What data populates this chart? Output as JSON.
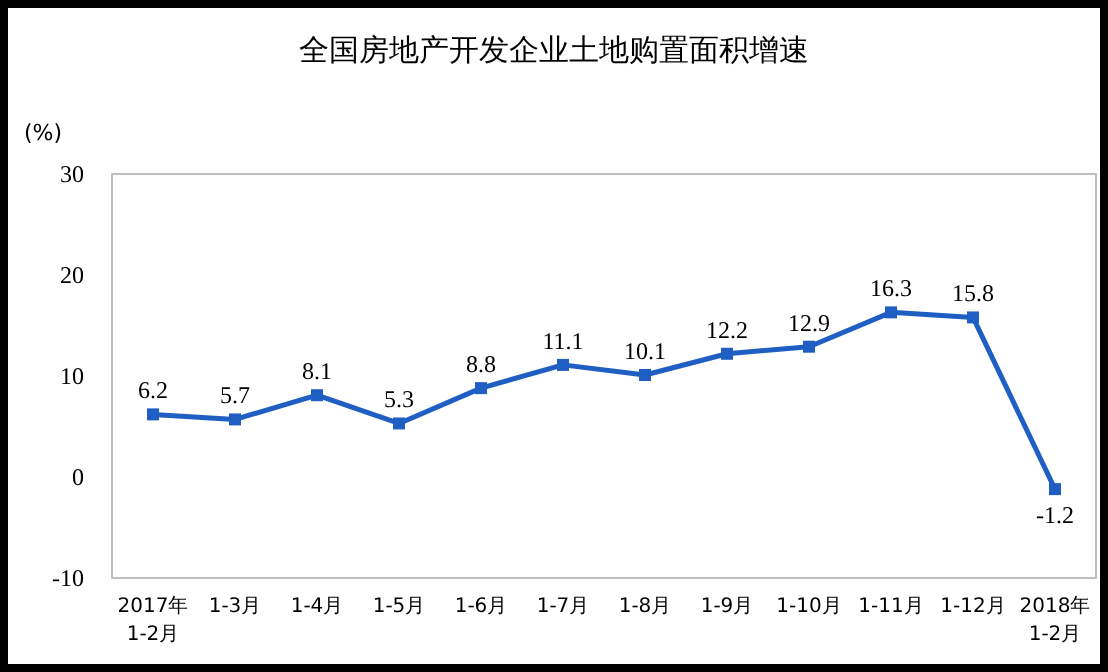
{
  "chart_data": {
    "type": "line",
    "title": "全国房地产开发企业土地购置面积增速",
    "ylabel": "(%)",
    "categories": [
      "2017年\n1-2月",
      "1-3月",
      "1-4月",
      "1-5月",
      "1-6月",
      "1-7月",
      "1-8月",
      "1-9月",
      "1-10月",
      "1-11月",
      "1-12月",
      "2018年\n1-2月"
    ],
    "series": [
      {
        "color": "#1f5fc4",
        "values": [
          6.2,
          5.7,
          8.1,
          5.3,
          8.8,
          11.1,
          10.1,
          12.2,
          12.9,
          16.3,
          15.8,
          -1.2
        ]
      }
    ],
    "ylim": [
      -10,
      30
    ],
    "yticks": [
      -10,
      0,
      10,
      20,
      30
    ],
    "marker": "square",
    "data_labels": true
  }
}
